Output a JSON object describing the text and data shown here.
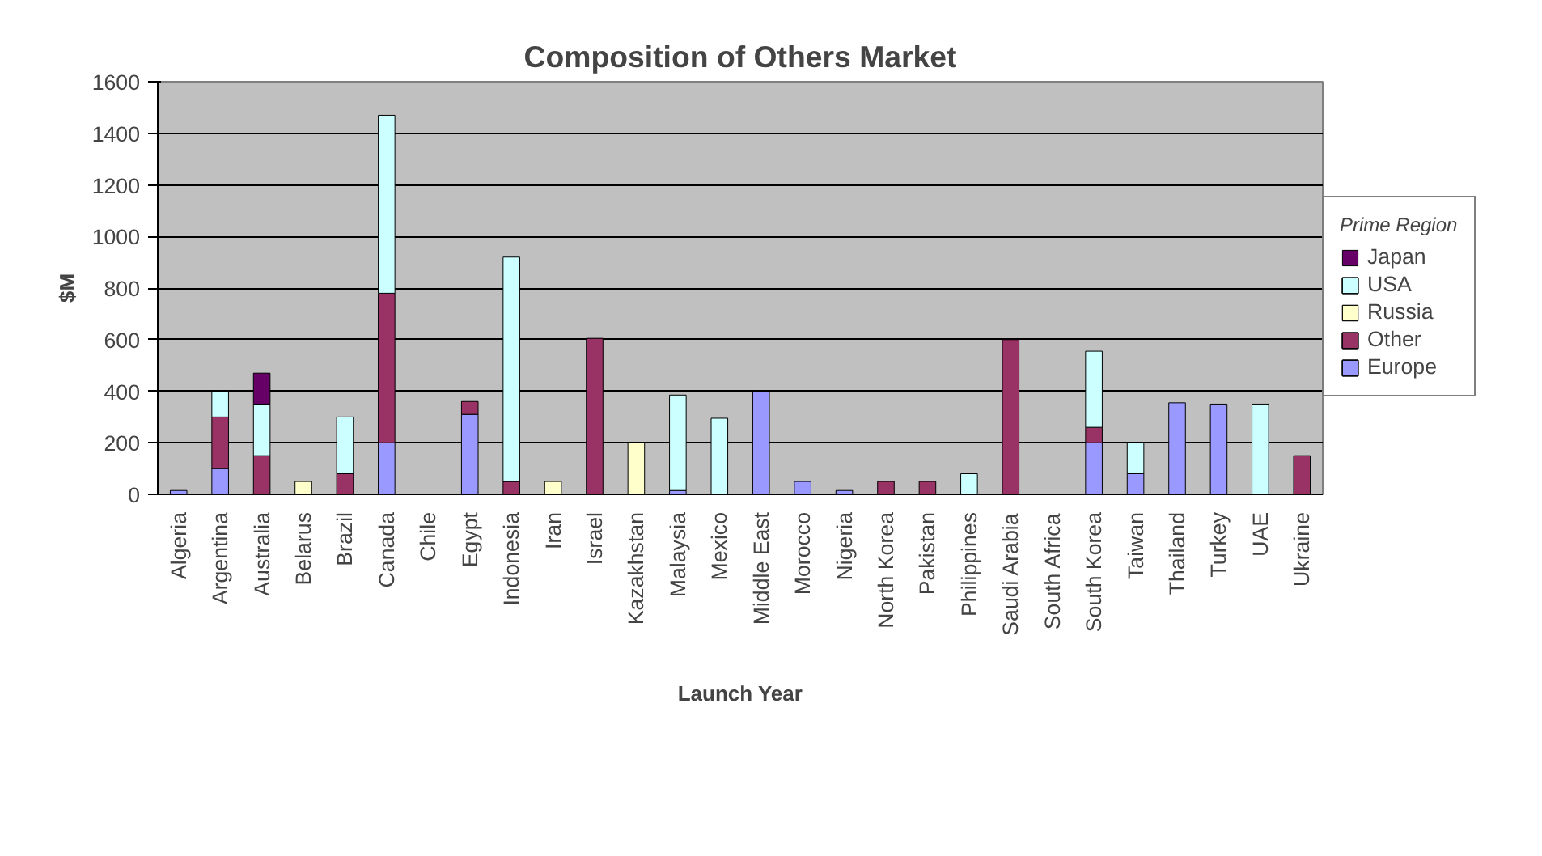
{
  "chart_data": {
    "type": "bar",
    "title": "Composition of Others Market",
    "xlabel": "Launch Year",
    "ylabel": "$M",
    "legend_title": "Prime Region",
    "stacked": true,
    "grid": "y",
    "legend": "right",
    "categories": [
      "Algeria",
      "Argentina",
      "Australia",
      "Belarus",
      "Brazil",
      "Canada",
      "Chile",
      "Egypt",
      "Indonesia",
      "Iran",
      "Israel",
      "Kazakhstan",
      "Malaysia",
      "Mexico",
      "Middle East",
      "Morocco",
      "Nigeria",
      "North Korea",
      "Pakistan",
      "Philippines",
      "Saudi Arabia",
      "South Africa",
      "South Korea",
      "Taiwan",
      "Thailand",
      "Turkey",
      "UAE",
      "Ukraine"
    ],
    "ylim": [
      0,
      1600
    ],
    "yticks": [
      0,
      200,
      400,
      600,
      800,
      1000,
      1200,
      1400,
      1600
    ],
    "series": [
      {
        "name": "Europe",
        "color": "#9999ff",
        "values": [
          15,
          100,
          0,
          0,
          0,
          200,
          0,
          310,
          0,
          0,
          0,
          0,
          15,
          0,
          400,
          50,
          15,
          0,
          0,
          0,
          0,
          0,
          200,
          80,
          355,
          350,
          0,
          0
        ]
      },
      {
        "name": "Other",
        "color": "#993366",
        "values": [
          0,
          200,
          150,
          0,
          80,
          580,
          0,
          50,
          50,
          0,
          605,
          0,
          0,
          0,
          0,
          0,
          0,
          50,
          50,
          0,
          600,
          0,
          60,
          0,
          0,
          0,
          0,
          150
        ]
      },
      {
        "name": "Russia",
        "color": "#ffffcc",
        "values": [
          0,
          0,
          0,
          50,
          0,
          0,
          0,
          0,
          0,
          50,
          0,
          200,
          0,
          0,
          0,
          0,
          0,
          0,
          0,
          0,
          0,
          0,
          0,
          0,
          0,
          0,
          0,
          0
        ]
      },
      {
        "name": "USA",
        "color": "#ccffff",
        "values": [
          0,
          100,
          200,
          0,
          220,
          690,
          0,
          0,
          870,
          0,
          0,
          0,
          370,
          295,
          0,
          0,
          0,
          0,
          0,
          80,
          0,
          0,
          295,
          120,
          0,
          0,
          350,
          0
        ]
      },
      {
        "name": "Japan",
        "color": "#660066",
        "values": [
          0,
          0,
          120,
          0,
          0,
          0,
          0,
          0,
          0,
          0,
          0,
          0,
          0,
          0,
          0,
          0,
          0,
          0,
          0,
          0,
          0,
          0,
          0,
          0,
          0,
          0,
          0,
          0
        ]
      }
    ]
  }
}
